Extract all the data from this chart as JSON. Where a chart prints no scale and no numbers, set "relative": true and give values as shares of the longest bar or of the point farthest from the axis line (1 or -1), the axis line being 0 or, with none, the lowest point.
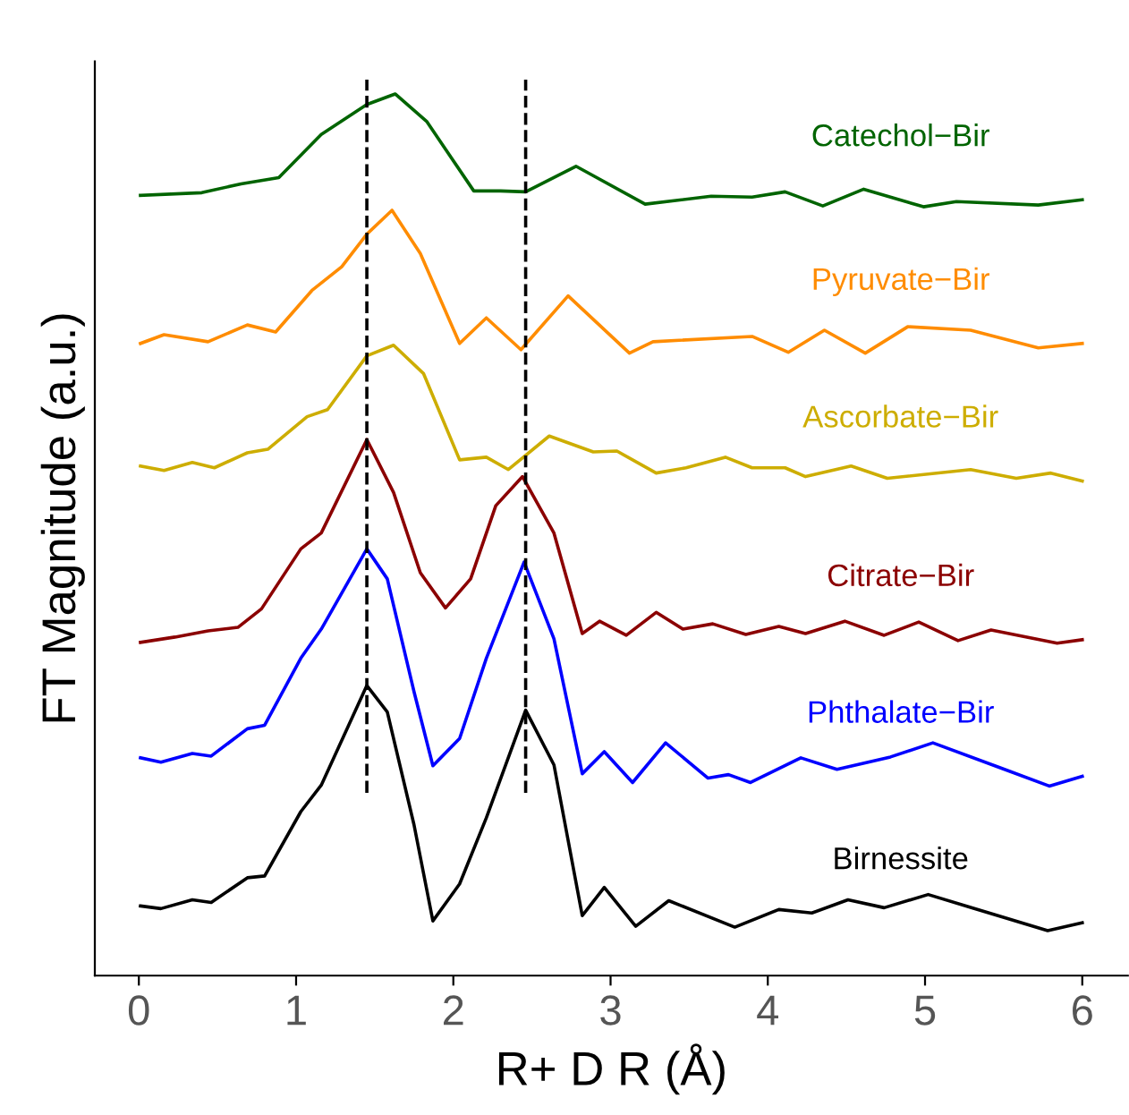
{
  "chart_data": {
    "type": "line",
    "relative": true,
    "xlabel": "R+ D R (Å)",
    "ylabel": "FT Magnitude (a.u.)",
    "xlim": [
      -0.28,
      6.29
    ],
    "xticks": [
      0,
      1,
      2,
      3,
      4,
      5,
      6
    ],
    "grid": false,
    "legend": false,
    "line_style": "solid",
    "marker": "none",
    "ref_lines": [
      {
        "axis": "x",
        "value": 1.45,
        "color": "#000000",
        "line_style": "dashed"
      },
      {
        "axis": "x",
        "value": 2.46,
        "color": "#000000",
        "line_style": "dashed"
      }
    ],
    "series": [
      {
        "name": "Catechol−Bir",
        "color": "#006400",
        "x": [
          0.01,
          0.4,
          0.65,
          0.89,
          1.16,
          1.45,
          1.63,
          1.83,
          2.13,
          2.3,
          2.46,
          2.78,
          3.22,
          3.64,
          3.9,
          4.11,
          4.35,
          4.61,
          4.99,
          5.2,
          5.72,
          6.0
        ],
        "values": [
          0.885,
          0.888,
          0.898,
          0.905,
          0.954,
          0.988,
          1.0,
          0.969,
          0.89,
          0.89,
          0.889,
          0.918,
          0.875,
          0.884,
          0.883,
          0.889,
          0.873,
          0.892,
          0.872,
          0.878,
          0.874,
          0.88
        ]
      },
      {
        "name": "Pyruvate−Bir",
        "color": "#ff8c00",
        "x": [
          0.01,
          0.16,
          0.44,
          0.69,
          0.87,
          1.1,
          1.29,
          1.45,
          1.61,
          1.79,
          2.04,
          2.21,
          2.43,
          2.73,
          3.12,
          3.27,
          3.9,
          4.13,
          4.36,
          4.62,
          4.89,
          5.29,
          5.72,
          6.0
        ],
        "values": [
          0.717,
          0.727,
          0.719,
          0.738,
          0.73,
          0.777,
          0.804,
          0.841,
          0.868,
          0.819,
          0.717,
          0.746,
          0.71,
          0.771,
          0.706,
          0.719,
          0.725,
          0.707,
          0.732,
          0.706,
          0.736,
          0.732,
          0.712,
          0.717
        ]
      },
      {
        "name": "Ascorbate−Bir",
        "color": "#cdad00",
        "x": [
          0.01,
          0.16,
          0.34,
          0.48,
          0.69,
          0.82,
          1.07,
          1.2,
          1.45,
          1.62,
          1.81,
          2.04,
          2.21,
          2.35,
          2.61,
          2.89,
          3.04,
          3.29,
          3.48,
          3.73,
          3.9,
          4.11,
          4.24,
          4.53,
          4.76,
          5.29,
          5.58,
          5.8,
          6.0
        ],
        "values": [
          0.578,
          0.573,
          0.582,
          0.576,
          0.593,
          0.597,
          0.634,
          0.642,
          0.703,
          0.715,
          0.683,
          0.585,
          0.588,
          0.574,
          0.612,
          0.594,
          0.595,
          0.57,
          0.576,
          0.588,
          0.576,
          0.576,
          0.566,
          0.578,
          0.564,
          0.574,
          0.564,
          0.57,
          0.561
        ]
      },
      {
        "name": "Citrate−Bir",
        "color": "#8b0000",
        "x": [
          0.01,
          0.23,
          0.44,
          0.63,
          0.78,
          1.03,
          1.16,
          1.45,
          1.62,
          1.79,
          1.95,
          2.11,
          2.27,
          2.44,
          2.64,
          2.82,
          2.93,
          3.1,
          3.29,
          3.46,
          3.65,
          3.86,
          4.07,
          4.24,
          4.49,
          4.74,
          4.96,
          5.21,
          5.42,
          5.84,
          6.0
        ],
        "values": [
          0.378,
          0.384,
          0.391,
          0.395,
          0.416,
          0.484,
          0.502,
          0.608,
          0.548,
          0.457,
          0.417,
          0.45,
          0.533,
          0.566,
          0.502,
          0.388,
          0.402,
          0.386,
          0.412,
          0.393,
          0.399,
          0.387,
          0.396,
          0.388,
          0.402,
          0.386,
          0.401,
          0.38,
          0.392,
          0.377,
          0.381
        ]
      },
      {
        "name": "Phthalate−Bir",
        "color": "#0000ff",
        "x": [
          0.01,
          0.14,
          0.34,
          0.46,
          0.69,
          0.8,
          1.03,
          1.16,
          1.45,
          1.58,
          1.75,
          1.87,
          2.04,
          2.21,
          2.45,
          2.64,
          2.82,
          2.96,
          3.14,
          3.35,
          3.62,
          3.75,
          3.89,
          4.21,
          4.44,
          4.78,
          5.05,
          5.49,
          5.79,
          6.0
        ],
        "values": [
          0.247,
          0.242,
          0.252,
          0.249,
          0.28,
          0.284,
          0.36,
          0.393,
          0.484,
          0.45,
          0.322,
          0.238,
          0.269,
          0.36,
          0.469,
          0.382,
          0.229,
          0.254,
          0.219,
          0.264,
          0.224,
          0.228,
          0.219,
          0.247,
          0.234,
          0.248,
          0.264,
          0.235,
          0.215,
          0.226
        ]
      },
      {
        "name": "Birnessite",
        "color": "#000000",
        "x": [
          0.01,
          0.14,
          0.34,
          0.46,
          0.69,
          0.8,
          1.03,
          1.16,
          1.45,
          1.58,
          1.75,
          1.87,
          2.04,
          2.21,
          2.46,
          2.64,
          2.82,
          2.96,
          3.16,
          3.37,
          3.79,
          4.07,
          4.28,
          4.51,
          4.74,
          5.02,
          5.37,
          5.78,
          6.0
        ],
        "values": [
          0.079,
          0.076,
          0.086,
          0.083,
          0.111,
          0.113,
          0.186,
          0.216,
          0.329,
          0.299,
          0.171,
          0.062,
          0.104,
          0.179,
          0.301,
          0.239,
          0.068,
          0.1,
          0.056,
          0.085,
          0.055,
          0.075,
          0.071,
          0.086,
          0.077,
          0.092,
          0.073,
          0.051,
          0.06
        ]
      }
    ]
  }
}
